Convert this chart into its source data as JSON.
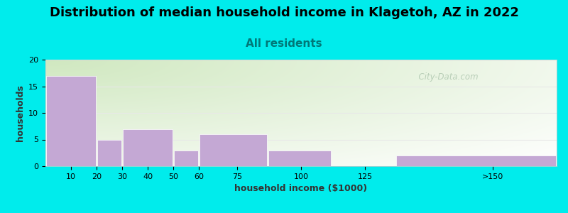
{
  "title": "Distribution of median household income in Klagetoh, AZ in 2022",
  "subtitle": "All residents",
  "xlabel": "household income ($1000)",
  "ylabel": "households",
  "bar_lefts": [
    0,
    20,
    30,
    50,
    60,
    87,
    137
  ],
  "bar_rights": [
    20,
    30,
    50,
    60,
    87,
    112,
    200
  ],
  "bar_values": [
    17,
    5,
    7,
    3,
    6,
    3,
    2
  ],
  "xtick_positions": [
    10,
    20,
    30,
    40,
    50,
    60,
    75,
    100,
    125,
    175
  ],
  "xtick_labels": [
    "10",
    "20",
    "30",
    "40",
    "50",
    "60",
    "75",
    "100",
    "125",
    ">150"
  ],
  "ylim": [
    0,
    20
  ],
  "xlim": [
    0,
    200
  ],
  "ytick_positions": [
    0,
    5,
    10,
    15,
    20
  ],
  "bar_color": "#c4a8d4",
  "background_color": "#00ecec",
  "plot_bg_top_left": "#d0e8c0",
  "plot_bg_bottom_right": "#f8fef8",
  "title_fontsize": 13,
  "subtitle_fontsize": 11,
  "subtitle_color": "#007878",
  "axis_label_fontsize": 9,
  "tick_label_fontsize": 8,
  "watermark_text": "  City-Data.com",
  "watermark_color": "#b0c8b0",
  "grid_color": "#e8e8e8"
}
